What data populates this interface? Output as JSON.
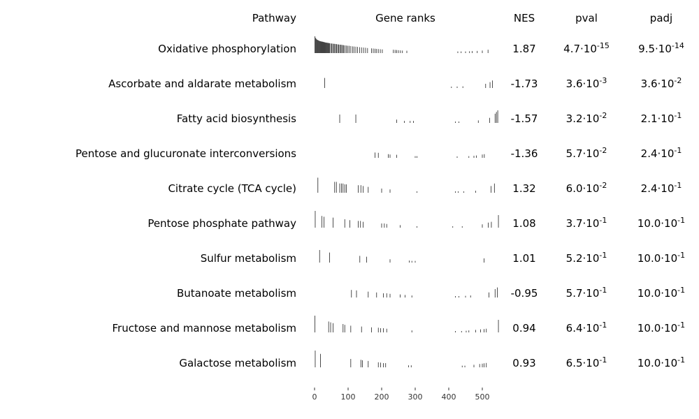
{
  "chart_data": {
    "type": "table",
    "title": "",
    "columns": {
      "pathway": "Pathway",
      "ranks": "Gene ranks",
      "nes": "NES",
      "pval": "pval",
      "padj": "padj"
    },
    "x_axis": {
      "range": [
        0,
        550
      ],
      "ticks": [
        0,
        100,
        200,
        300,
        400,
        500
      ]
    },
    "rows": [
      {
        "pathway": "Oxidative phosphorylation",
        "nes": "1.87",
        "pval": {
          "mant": "4.7",
          "exp": "-15"
        },
        "padj": {
          "mant": "9.5",
          "exp": "-14"
        },
        "ranks": [
          {
            "x": 1,
            "h": 1.0
          },
          {
            "x": 3,
            "h": 0.9
          },
          {
            "x": 5,
            "h": 0.85
          },
          {
            "x": 7,
            "h": 0.8
          },
          {
            "x": 9,
            "h": 0.78
          },
          {
            "x": 11,
            "h": 0.76
          },
          {
            "x": 13,
            "h": 0.74
          },
          {
            "x": 15,
            "h": 0.72
          },
          {
            "x": 17,
            "h": 0.71
          },
          {
            "x": 19,
            "h": 0.7
          },
          {
            "x": 21,
            "h": 0.69
          },
          {
            "x": 23,
            "h": 0.68
          },
          {
            "x": 25,
            "h": 0.67
          },
          {
            "x": 27,
            "h": 0.66
          },
          {
            "x": 29,
            "h": 0.65
          },
          {
            "x": 31,
            "h": 0.64
          },
          {
            "x": 33,
            "h": 0.63
          },
          {
            "x": 35,
            "h": 0.62
          },
          {
            "x": 37,
            "h": 0.62
          },
          {
            "x": 39,
            "h": 0.61
          },
          {
            "x": 41,
            "h": 0.6
          },
          {
            "x": 43,
            "h": 0.6
          },
          {
            "x": 45,
            "h": 0.59
          },
          {
            "x": 48,
            "h": 0.58
          },
          {
            "x": 51,
            "h": 0.57
          },
          {
            "x": 54,
            "h": 0.56
          },
          {
            "x": 57,
            "h": 0.55
          },
          {
            "x": 60,
            "h": 0.55
          },
          {
            "x": 63,
            "h": 0.54
          },
          {
            "x": 66,
            "h": 0.53
          },
          {
            "x": 69,
            "h": 0.52
          },
          {
            "x": 72,
            "h": 0.51
          },
          {
            "x": 75,
            "h": 0.5
          },
          {
            "x": 78,
            "h": 0.5
          },
          {
            "x": 81,
            "h": 0.49
          },
          {
            "x": 84,
            "h": 0.48
          },
          {
            "x": 87,
            "h": 0.47
          },
          {
            "x": 91,
            "h": 0.46
          },
          {
            "x": 95,
            "h": 0.45
          },
          {
            "x": 99,
            "h": 0.44
          },
          {
            "x": 103,
            "h": 0.43
          },
          {
            "x": 108,
            "h": 0.42
          },
          {
            "x": 113,
            "h": 0.4
          },
          {
            "x": 118,
            "h": 0.39
          },
          {
            "x": 123,
            "h": 0.38
          },
          {
            "x": 128,
            "h": 0.37
          },
          {
            "x": 134,
            "h": 0.35
          },
          {
            "x": 140,
            "h": 0.34
          },
          {
            "x": 146,
            "h": 0.33
          },
          {
            "x": 152,
            "h": 0.32
          },
          {
            "x": 158,
            "h": 0.3
          },
          {
            "x": 170,
            "h": 0.28
          },
          {
            "x": 175,
            "h": 0.27
          },
          {
            "x": 180,
            "h": 0.26
          },
          {
            "x": 185,
            "h": 0.25
          },
          {
            "x": 190,
            "h": 0.24
          },
          {
            "x": 196,
            "h": 0.23
          },
          {
            "x": 202,
            "h": 0.22
          },
          {
            "x": 235,
            "h": 0.2
          },
          {
            "x": 240,
            "h": 0.19
          },
          {
            "x": 245,
            "h": 0.18
          },
          {
            "x": 250,
            "h": 0.17
          },
          {
            "x": 256,
            "h": 0.16
          },
          {
            "x": 262,
            "h": 0.15
          },
          {
            "x": 275,
            "h": 0.14
          },
          {
            "x": 427,
            "h": 0.1
          },
          {
            "x": 437,
            "h": 0.1
          },
          {
            "x": 450,
            "h": 0.1
          },
          {
            "x": 462,
            "h": 0.11
          },
          {
            "x": 470,
            "h": 0.12
          },
          {
            "x": 485,
            "h": 0.13
          },
          {
            "x": 500,
            "h": 0.15
          },
          {
            "x": 517,
            "h": 0.2
          }
        ]
      },
      {
        "pathway": "Ascorbate and aldarate metabolism",
        "nes": "-1.73",
        "pval": {
          "mant": "3.6",
          "exp": "-3"
        },
        "padj": {
          "mant": "3.6",
          "exp": "-2"
        },
        "ranks": [
          {
            "x": 30,
            "h": 0.6
          },
          {
            "x": 408,
            "h": 0.08
          },
          {
            "x": 425,
            "h": 0.09
          },
          {
            "x": 442,
            "h": 0.1
          },
          {
            "x": 510,
            "h": 0.25
          },
          {
            "x": 523,
            "h": 0.35
          },
          {
            "x": 530,
            "h": 0.45
          }
        ]
      },
      {
        "pathway": "Fatty acid biosynthesis",
        "nes": "-1.57",
        "pval": {
          "mant": "3.2",
          "exp": "-2"
        },
        "padj": {
          "mant": "2.1",
          "exp": "-1"
        },
        "ranks": [
          {
            "x": 75,
            "h": 0.5
          },
          {
            "x": 123,
            "h": 0.5
          },
          {
            "x": 245,
            "h": 0.2
          },
          {
            "x": 268,
            "h": 0.12
          },
          {
            "x": 285,
            "h": 0.12
          },
          {
            "x": 295,
            "h": 0.12
          },
          {
            "x": 420,
            "h": 0.08
          },
          {
            "x": 430,
            "h": 0.08
          },
          {
            "x": 488,
            "h": 0.15
          },
          {
            "x": 522,
            "h": 0.3
          },
          {
            "x": 538,
            "h": 0.55
          },
          {
            "x": 542,
            "h": 0.65
          },
          {
            "x": 546,
            "h": 0.75
          }
        ]
      },
      {
        "pathway": "Pentose and glucuronate interconversions",
        "nes": "-1.36",
        "pval": {
          "mant": "5.7",
          "exp": "-2"
        },
        "padj": {
          "mant": "2.4",
          "exp": "-1"
        },
        "ranks": [
          {
            "x": 180,
            "h": 0.32
          },
          {
            "x": 190,
            "h": 0.3
          },
          {
            "x": 220,
            "h": 0.22
          },
          {
            "x": 225,
            "h": 0.2
          },
          {
            "x": 245,
            "h": 0.18
          },
          {
            "x": 300,
            "h": 0.1
          },
          {
            "x": 305,
            "h": 0.1
          },
          {
            "x": 425,
            "h": 0.08
          },
          {
            "x": 460,
            "h": 0.1
          },
          {
            "x": 475,
            "h": 0.12
          },
          {
            "x": 482,
            "h": 0.14
          },
          {
            "x": 500,
            "h": 0.2
          },
          {
            "x": 506,
            "h": 0.22
          }
        ]
      },
      {
        "pathway": "Citrate cycle (TCA cycle)",
        "nes": "1.32",
        "pval": {
          "mant": "6.0",
          "exp": "-2"
        },
        "padj": {
          "mant": "2.4",
          "exp": "-1"
        },
        "ranks": [
          {
            "x": 10,
            "h": 0.9
          },
          {
            "x": 60,
            "h": 0.65
          },
          {
            "x": 65,
            "h": 0.65
          },
          {
            "x": 75,
            "h": 0.55
          },
          {
            "x": 80,
            "h": 0.55
          },
          {
            "x": 85,
            "h": 0.55
          },
          {
            "x": 90,
            "h": 0.5
          },
          {
            "x": 95,
            "h": 0.5
          },
          {
            "x": 130,
            "h": 0.45
          },
          {
            "x": 138,
            "h": 0.45
          },
          {
            "x": 145,
            "h": 0.4
          },
          {
            "x": 160,
            "h": 0.35
          },
          {
            "x": 200,
            "h": 0.25
          },
          {
            "x": 225,
            "h": 0.2
          },
          {
            "x": 305,
            "h": 0.08
          },
          {
            "x": 420,
            "h": 0.07
          },
          {
            "x": 428,
            "h": 0.07
          },
          {
            "x": 445,
            "h": 0.08
          },
          {
            "x": 480,
            "h": 0.12
          },
          {
            "x": 526,
            "h": 0.4
          },
          {
            "x": 536,
            "h": 0.55
          }
        ]
      },
      {
        "pathway": "Pentose phosphate pathway",
        "nes": "1.08",
        "pval": {
          "mant": "3.7",
          "exp": "-1"
        },
        "padj": {
          "mant": "10.0",
          "exp": "-1"
        },
        "ranks": [
          {
            "x": 2,
            "h": 1.0
          },
          {
            "x": 22,
            "h": 0.7
          },
          {
            "x": 28,
            "h": 0.65
          },
          {
            "x": 55,
            "h": 0.6
          },
          {
            "x": 90,
            "h": 0.5
          },
          {
            "x": 105,
            "h": 0.45
          },
          {
            "x": 130,
            "h": 0.4
          },
          {
            "x": 137,
            "h": 0.4
          },
          {
            "x": 145,
            "h": 0.35
          },
          {
            "x": 200,
            "h": 0.25
          },
          {
            "x": 208,
            "h": 0.25
          },
          {
            "x": 215,
            "h": 0.22
          },
          {
            "x": 255,
            "h": 0.15
          },
          {
            "x": 305,
            "h": 0.08
          },
          {
            "x": 412,
            "h": 0.07
          },
          {
            "x": 440,
            "h": 0.08
          },
          {
            "x": 500,
            "h": 0.2
          },
          {
            "x": 518,
            "h": 0.3
          },
          {
            "x": 527,
            "h": 0.35
          },
          {
            "x": 548,
            "h": 0.75
          }
        ]
      },
      {
        "pathway": "Sulfur metabolism",
        "nes": "1.01",
        "pval": {
          "mant": "5.2",
          "exp": "-1"
        },
        "padj": {
          "mant": "10.0",
          "exp": "-1"
        },
        "ranks": [
          {
            "x": 15,
            "h": 0.75
          },
          {
            "x": 45,
            "h": 0.6
          },
          {
            "x": 135,
            "h": 0.4
          },
          {
            "x": 155,
            "h": 0.35
          },
          {
            "x": 225,
            "h": 0.2
          },
          {
            "x": 282,
            "h": 0.12
          },
          {
            "x": 290,
            "h": 0.1
          },
          {
            "x": 300,
            "h": 0.1
          },
          {
            "x": 505,
            "h": 0.25
          }
        ]
      },
      {
        "pathway": "Butanoate metabolism",
        "nes": "-0.95",
        "pval": {
          "mant": "5.7",
          "exp": "-1"
        },
        "padj": {
          "mant": "10.0",
          "exp": "-1"
        },
        "ranks": [
          {
            "x": 110,
            "h": 0.45
          },
          {
            "x": 125,
            "h": 0.42
          },
          {
            "x": 160,
            "h": 0.35
          },
          {
            "x": 185,
            "h": 0.3
          },
          {
            "x": 205,
            "h": 0.25
          },
          {
            "x": 215,
            "h": 0.25
          },
          {
            "x": 225,
            "h": 0.22
          },
          {
            "x": 255,
            "h": 0.18
          },
          {
            "x": 270,
            "h": 0.15
          },
          {
            "x": 290,
            "h": 0.12
          },
          {
            "x": 420,
            "h": 0.08
          },
          {
            "x": 430,
            "h": 0.08
          },
          {
            "x": 450,
            "h": 0.1
          },
          {
            "x": 465,
            "h": 0.12
          },
          {
            "x": 520,
            "h": 0.3
          },
          {
            "x": 538,
            "h": 0.5
          },
          {
            "x": 545,
            "h": 0.6
          }
        ]
      },
      {
        "pathway": "Fructose and mannose metabolism",
        "nes": "0.94",
        "pval": {
          "mant": "6.4",
          "exp": "-1"
        },
        "padj": {
          "mant": "10.0",
          "exp": "-1"
        },
        "ranks": [
          {
            "x": 1,
            "h": 1.0
          },
          {
            "x": 42,
            "h": 0.65
          },
          {
            "x": 48,
            "h": 0.6
          },
          {
            "x": 55,
            "h": 0.55
          },
          {
            "x": 85,
            "h": 0.5
          },
          {
            "x": 90,
            "h": 0.45
          },
          {
            "x": 108,
            "h": 0.4
          },
          {
            "x": 140,
            "h": 0.35
          },
          {
            "x": 170,
            "h": 0.3
          },
          {
            "x": 190,
            "h": 0.28
          },
          {
            "x": 197,
            "h": 0.25
          },
          {
            "x": 205,
            "h": 0.25
          },
          {
            "x": 215,
            "h": 0.22
          },
          {
            "x": 290,
            "h": 0.12
          },
          {
            "x": 420,
            "h": 0.08
          },
          {
            "x": 438,
            "h": 0.08
          },
          {
            "x": 452,
            "h": 0.1
          },
          {
            "x": 460,
            "h": 0.12
          },
          {
            "x": 480,
            "h": 0.15
          },
          {
            "x": 495,
            "h": 0.18
          },
          {
            "x": 505,
            "h": 0.2
          },
          {
            "x": 512,
            "h": 0.22
          },
          {
            "x": 548,
            "h": 0.75
          }
        ]
      },
      {
        "pathway": "Galactose metabolism",
        "nes": "0.93",
        "pval": {
          "mant": "6.5",
          "exp": "-1"
        },
        "padj": {
          "mant": "10.0",
          "exp": "-1"
        },
        "ranks": [
          {
            "x": 2,
            "h": 1.0
          },
          {
            "x": 18,
            "h": 0.8
          },
          {
            "x": 108,
            "h": 0.5
          },
          {
            "x": 138,
            "h": 0.45
          },
          {
            "x": 143,
            "h": 0.42
          },
          {
            "x": 160,
            "h": 0.38
          },
          {
            "x": 190,
            "h": 0.3
          },
          {
            "x": 197,
            "h": 0.28
          },
          {
            "x": 205,
            "h": 0.25
          },
          {
            "x": 212,
            "h": 0.25
          },
          {
            "x": 280,
            "h": 0.12
          },
          {
            "x": 288,
            "h": 0.12
          },
          {
            "x": 440,
            "h": 0.1
          },
          {
            "x": 448,
            "h": 0.1
          },
          {
            "x": 475,
            "h": 0.15
          },
          {
            "x": 492,
            "h": 0.2
          },
          {
            "x": 500,
            "h": 0.22
          },
          {
            "x": 505,
            "h": 0.24
          },
          {
            "x": 512,
            "h": 0.26
          }
        ]
      }
    ]
  }
}
